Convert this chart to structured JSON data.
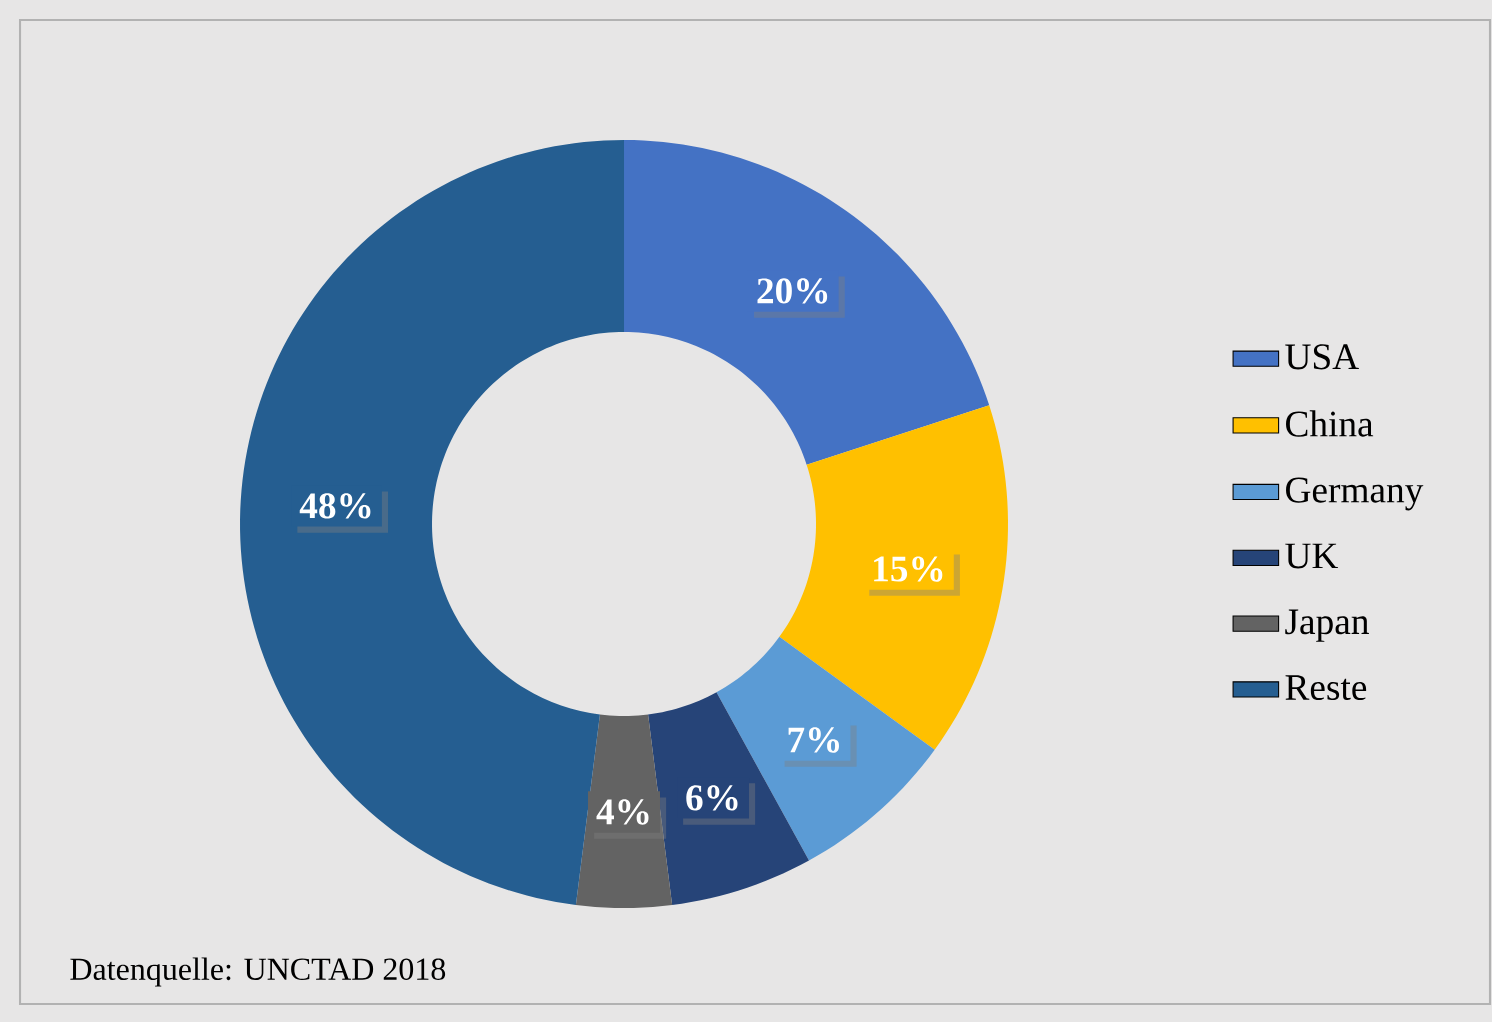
{
  "chart_data": {
    "type": "donut",
    "categories": [
      "USA",
      "China",
      "Germany",
      "UK",
      "Japan",
      "Reste"
    ],
    "values": [
      20,
      15,
      7,
      6,
      4,
      48
    ],
    "colors": [
      "#4472c4",
      "#ffc000",
      "#5b9bd5",
      "#264478",
      "#636363",
      "#255e91"
    ],
    "value_labels": [
      "20%",
      "15%",
      "7%",
      "6%",
      "4%",
      "48%"
    ],
    "legend": "right",
    "annotations": [
      "Datenquelle: UNCTAD 2018"
    ]
  }
}
